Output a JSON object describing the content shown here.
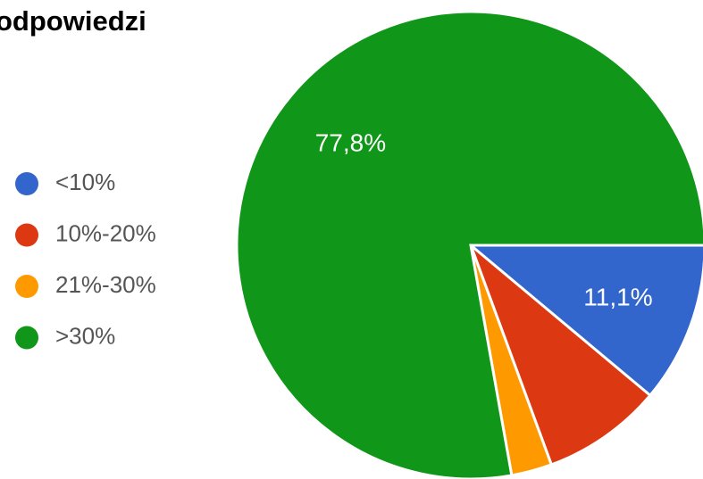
{
  "chart_data": {
    "type": "pie",
    "title": "odpowiedzi",
    "categories": [
      "<10%",
      "10%-20%",
      "21%-30%",
      ">30%"
    ],
    "values": [
      11.1,
      8.3,
      2.8,
      77.8
    ],
    "value_labels": [
      "11,1%",
      null,
      null,
      "77,8%"
    ],
    "colors": [
      "#3366cc",
      "#dc3912",
      "#ff9900",
      "#109618"
    ],
    "legend": "left"
  }
}
